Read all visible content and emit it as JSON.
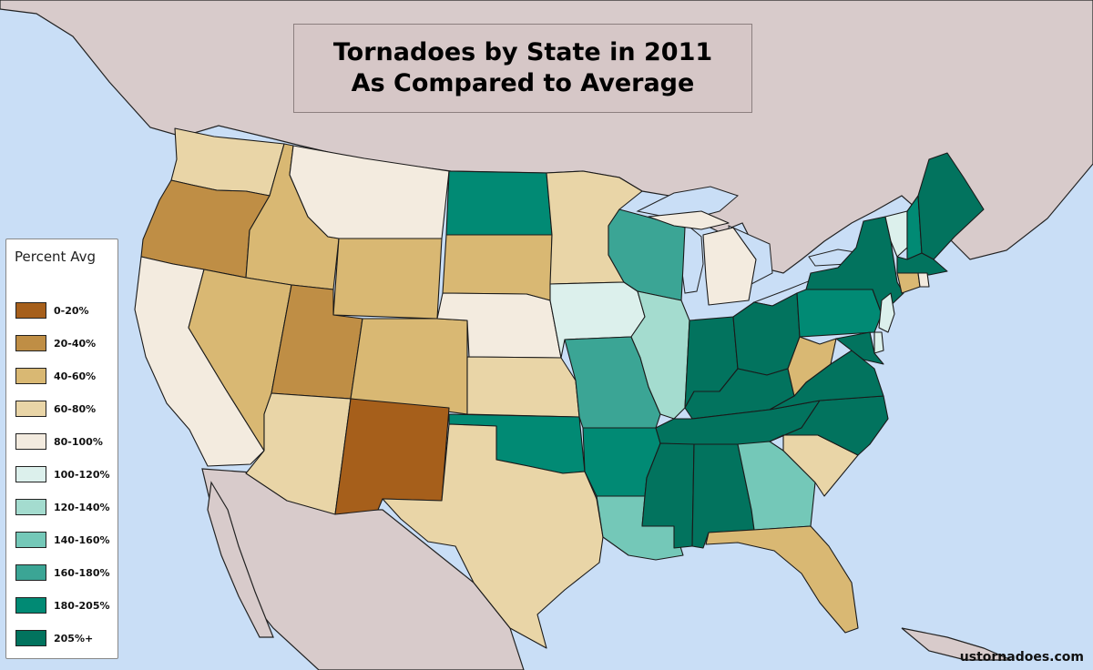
{
  "title": {
    "line1": "Tornadoes by State in 2011",
    "line2": "As Compared to Average"
  },
  "legend": {
    "title": "Percent Avg",
    "items": [
      {
        "label": "0-20%",
        "color": "#a65f1b"
      },
      {
        "label": "20-40%",
        "color": "#bf8e45"
      },
      {
        "label": "40-60%",
        "color": "#d9b873"
      },
      {
        "label": "60-80%",
        "color": "#e9d5a7"
      },
      {
        "label": "80-100%",
        "color": "#f3ebdf"
      },
      {
        "label": "100-120%",
        "color": "#dcf0ec"
      },
      {
        "label": "120-140%",
        "color": "#a4dccf"
      },
      {
        "label": "140-160%",
        "color": "#74c8b8"
      },
      {
        "label": "160-180%",
        "color": "#3ba595"
      },
      {
        "label": "180-205%",
        "color": "#018a74"
      },
      {
        "label": "205%+",
        "color": "#02735e"
      }
    ]
  },
  "states": [
    {
      "id": "WA",
      "bin": 3
    },
    {
      "id": "OR",
      "bin": 1
    },
    {
      "id": "CA",
      "bin": 4
    },
    {
      "id": "ID",
      "bin": 2
    },
    {
      "id": "NV",
      "bin": 2
    },
    {
      "id": "MT",
      "bin": 4
    },
    {
      "id": "WY",
      "bin": 2
    },
    {
      "id": "UT",
      "bin": 1
    },
    {
      "id": "AZ",
      "bin": 3
    },
    {
      "id": "CO",
      "bin": 2
    },
    {
      "id": "NM",
      "bin": 0
    },
    {
      "id": "ND",
      "bin": 9
    },
    {
      "id": "SD",
      "bin": 2
    },
    {
      "id": "NE",
      "bin": 4
    },
    {
      "id": "KS",
      "bin": 3
    },
    {
      "id": "OK",
      "bin": 9
    },
    {
      "id": "TX",
      "bin": 3
    },
    {
      "id": "MN",
      "bin": 3
    },
    {
      "id": "IA",
      "bin": 5
    },
    {
      "id": "MO",
      "bin": 8
    },
    {
      "id": "AR",
      "bin": 9
    },
    {
      "id": "LA",
      "bin": 7
    },
    {
      "id": "WI",
      "bin": 8
    },
    {
      "id": "IL",
      "bin": 6
    },
    {
      "id": "MI",
      "bin": 4
    },
    {
      "id": "IN",
      "bin": 10
    },
    {
      "id": "OH",
      "bin": 10
    },
    {
      "id": "KY",
      "bin": 10
    },
    {
      "id": "TN",
      "bin": 10
    },
    {
      "id": "MS",
      "bin": 10
    },
    {
      "id": "AL",
      "bin": 10
    },
    {
      "id": "GA",
      "bin": 7
    },
    {
      "id": "FL",
      "bin": 2
    },
    {
      "id": "SC",
      "bin": 3
    },
    {
      "id": "NC",
      "bin": 10
    },
    {
      "id": "VA",
      "bin": 10
    },
    {
      "id": "WV",
      "bin": 2
    },
    {
      "id": "PA",
      "bin": 9
    },
    {
      "id": "NY",
      "bin": 10
    },
    {
      "id": "VT",
      "bin": 5
    },
    {
      "id": "NH",
      "bin": 9
    },
    {
      "id": "ME",
      "bin": 10
    },
    {
      "id": "MA",
      "bin": 10
    },
    {
      "id": "CT",
      "bin": 2
    },
    {
      "id": "RI",
      "bin": 4
    },
    {
      "id": "NJ",
      "bin": 5
    },
    {
      "id": "DE",
      "bin": 5
    },
    {
      "id": "MD",
      "bin": 10
    }
  ],
  "credit": "ustornadoes.com"
}
